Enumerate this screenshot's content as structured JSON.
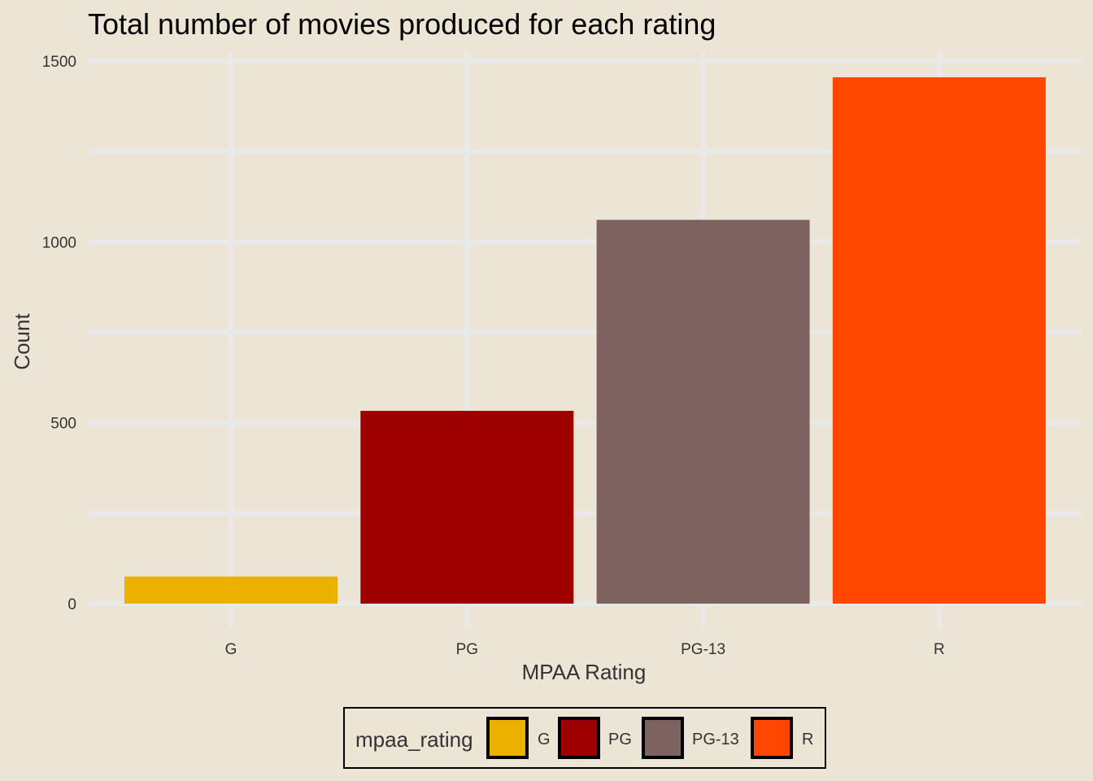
{
  "chart_data": {
    "type": "bar",
    "title": "Total number of movies produced for each rating",
    "xlabel": "MPAA Rating",
    "ylabel": "Count",
    "categories": [
      "G",
      "PG",
      "PG-13",
      "R"
    ],
    "values": [
      75,
      533,
      1061,
      1455
    ],
    "colors": [
      "#ebb000",
      "#9e0000",
      "#7e6260",
      "#ff4700"
    ],
    "ylim": [
      0,
      1500
    ],
    "yticks": [
      0,
      500,
      1000,
      1500
    ],
    "ytick_labels": [
      "0",
      "500",
      "1000",
      "1500"
    ],
    "grid": true,
    "legend": {
      "title": "mpaa_rating",
      "position": "bottom",
      "entries": [
        "G",
        "PG",
        "PG-13",
        "R"
      ]
    }
  },
  "theme": {
    "background": "#ece5d6",
    "gridline": "#e9e9e9"
  }
}
